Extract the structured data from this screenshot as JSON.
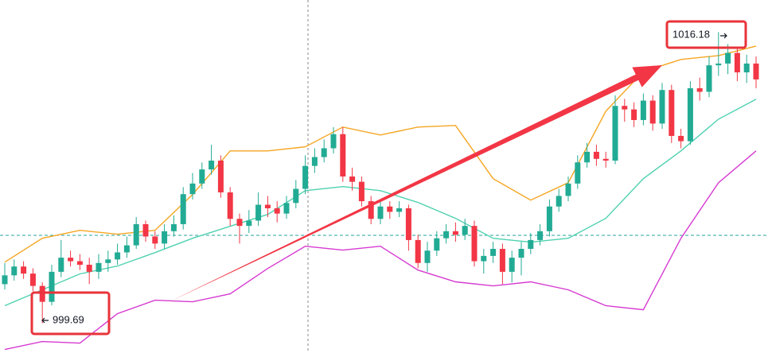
{
  "chart_data": {
    "type": "candlestick",
    "ylim": [
      998,
      1018
    ],
    "up_color": "#22ab94",
    "down_color": "#f23645",
    "open": [
      1001.9,
      1002.4,
      1002.9,
      1002.5,
      1001.8,
      1000.9,
      1002.6,
      1003.4,
      1003.2,
      1003.0,
      1002.6,
      1003.1,
      1003.3,
      1003.7,
      1004.1,
      1005.3,
      1004.6,
      1004.2,
      1004.9,
      1005.3,
      1007.0,
      1007.6,
      1008.4,
      1008.9,
      1007.1,
      1005.6,
      1005.2,
      1005.5,
      1006.4,
      1006.2,
      1005.9,
      1006.5,
      1007.3,
      1008.6,
      1009.1,
      1009.6,
      1010.4,
      1008.0,
      1007.7,
      1006.6,
      1005.6,
      1006.3,
      1006.0,
      1006.2,
      1004.4,
      1003.1,
      1003.8,
      1004.5,
      1004.9,
      1004.7,
      1005.2,
      1003.2,
      1003.5,
      1003.9,
      1002.6,
      1003.4,
      1003.9,
      1004.4,
      1004.9,
      1006.3,
      1006.9,
      1007.6,
      1008.8,
      1009.4,
      1009.0,
      1008.9,
      1012.0,
      1011.8,
      1011.2,
      1012.3,
      1011.0,
      1012.9,
      1010.3,
      1010.0,
      1013.0,
      1012.8,
      1014.3,
      1014.4,
      1015.0,
      1013.9,
      1014.4
    ],
    "high": [
      1003.1,
      1003.3,
      1003.2,
      1002.8,
      1002.0,
      1003.0,
      1004.4,
      1003.8,
      1003.6,
      1003.4,
      1003.6,
      1003.8,
      1004.2,
      1004.6,
      1005.7,
      1005.5,
      1004.9,
      1005.3,
      1005.8,
      1007.4,
      1008.2,
      1008.8,
      1009.8,
      1009.2,
      1007.4,
      1005.9,
      1006.1,
      1007.1,
      1006.9,
      1006.6,
      1006.9,
      1007.8,
      1009.2,
      1009.6,
      1010.1,
      1010.8,
      1010.8,
      1008.5,
      1008.0,
      1006.9,
      1006.7,
      1006.6,
      1006.6,
      1006.4,
      1004.7,
      1004.3,
      1004.9,
      1005.3,
      1005.4,
      1005.6,
      1005.5,
      1003.9,
      1004.3,
      1004.2,
      1003.8,
      1004.3,
      1004.8,
      1005.3,
      1006.7,
      1007.3,
      1008.0,
      1009.2,
      1009.9,
      1009.8,
      1009.4,
      1012.6,
      1012.4,
      1012.2,
      1012.7,
      1012.6,
      1013.3,
      1013.2,
      1010.7,
      1013.4,
      1013.6,
      1014.8,
      1016.18,
      1015.5,
      1015.3,
      1014.9,
      1014.8
    ],
    "low": [
      1001.6,
      1002.1,
      1002.2,
      1001.5,
      999.69,
      1000.7,
      1002.3,
      1002.9,
      1002.7,
      1001.9,
      1002.2,
      1002.6,
      1003.0,
      1003.4,
      1003.9,
      1004.3,
      1003.9,
      1003.9,
      1004.6,
      1005.0,
      1006.7,
      1007.3,
      1008.1,
      1006.8,
      1005.2,
      1004.2,
      1004.8,
      1005.2,
      1005.7,
      1005.4,
      1005.6,
      1006.2,
      1007.0,
      1008.2,
      1008.8,
      1009.3,
      1007.7,
      1007.2,
      1006.3,
      1005.3,
      1005.3,
      1005.6,
      1005.7,
      1003.8,
      1002.8,
      1002.6,
      1003.5,
      1004.2,
      1004.3,
      1004.4,
      1002.9,
      1002.5,
      1003.1,
      1001.9,
      1002.0,
      1002.4,
      1003.6,
      1004.1,
      1004.6,
      1006.0,
      1006.6,
      1007.3,
      1008.5,
      1008.6,
      1008.5,
      1008.7,
      1011.1,
      1010.8,
      1010.9,
      1010.6,
      1010.7,
      1009.9,
      1009.6,
      1009.8,
      1012.3,
      1012.5,
      1013.7,
      1013.8,
      1013.4,
      1013.3,
      1013.0
    ],
    "close": [
      1002.4,
      1002.9,
      1002.5,
      1001.8,
      1000.9,
      1002.6,
      1003.4,
      1003.2,
      1003.0,
      1002.6,
      1003.1,
      1003.3,
      1003.7,
      1004.1,
      1005.3,
      1004.6,
      1004.2,
      1004.9,
      1005.3,
      1007.0,
      1007.6,
      1008.4,
      1008.9,
      1007.1,
      1005.6,
      1005.2,
      1005.5,
      1006.4,
      1006.2,
      1005.9,
      1006.5,
      1007.3,
      1008.6,
      1009.1,
      1009.6,
      1010.4,
      1008.0,
      1007.7,
      1006.6,
      1005.6,
      1006.3,
      1006.0,
      1006.2,
      1004.4,
      1003.1,
      1003.8,
      1004.5,
      1004.9,
      1004.7,
      1005.2,
      1003.2,
      1003.5,
      1003.9,
      1002.6,
      1003.4,
      1003.9,
      1004.4,
      1004.9,
      1006.3,
      1006.9,
      1007.6,
      1008.8,
      1009.4,
      1009.0,
      1008.9,
      1012.0,
      1011.8,
      1011.2,
      1012.3,
      1011.0,
      1012.9,
      1010.3,
      1010.0,
      1013.0,
      1012.8,
      1014.3,
      1014.4,
      1015.0,
      1013.9,
      1014.4,
      1013.5
    ],
    "bands": [
      {
        "color": "#f5a623",
        "x": [
          0,
          4,
          8,
          12,
          16,
          20,
          24,
          28,
          32,
          36,
          40,
          44,
          48,
          52,
          56,
          60,
          64,
          68,
          72,
          76,
          80
        ],
        "values": [
          1003.15,
          1004.5,
          1004.95,
          1004.73,
          1004.95,
          1006.98,
          1009.45,
          1009.45,
          1009.68,
          1010.8,
          1010.35,
          1010.8,
          1010.89,
          1007.88,
          1006.66,
          1007.65,
          1011.7,
          1013.95,
          1014.63,
          1014.85,
          1015.39
        ]
      },
      {
        "color": "#4fd1b0",
        "x": [
          0,
          4,
          8,
          12,
          16,
          20,
          24,
          28,
          32,
          36,
          40,
          44,
          48,
          52,
          56,
          60,
          64,
          68,
          72,
          76,
          80
        ],
        "values": [
          1000.68,
          1001.58,
          1002.48,
          1002.93,
          1003.69,
          1004.5,
          1005.18,
          1005.85,
          1007.2,
          1007.43,
          1007.2,
          1006.53,
          1005.63,
          1004.5,
          1004.28,
          1004.5,
          1005.63,
          1007.88,
          1009.45,
          1011.25,
          1012.38
        ]
      },
      {
        "color": "#d63ad1",
        "x": [
          0,
          4,
          8,
          12,
          16,
          20,
          24,
          28,
          32,
          36,
          40,
          44,
          48,
          52,
          56,
          60,
          64,
          68,
          72,
          76,
          80
        ],
        "values": [
          998.2,
          998.65,
          998.56,
          1000.23,
          1000.99,
          1000.9,
          1001.35,
          1002.79,
          1004.05,
          1003.83,
          1004.05,
          1002.7,
          1002.03,
          1001.8,
          1002.03,
          1001.58,
          1000.68,
          1000.45,
          1004.5,
          1007.65,
          1009.45
        ]
      }
    ],
    "annotations": [
      "999.69",
      "1016.18"
    ]
  }
}
